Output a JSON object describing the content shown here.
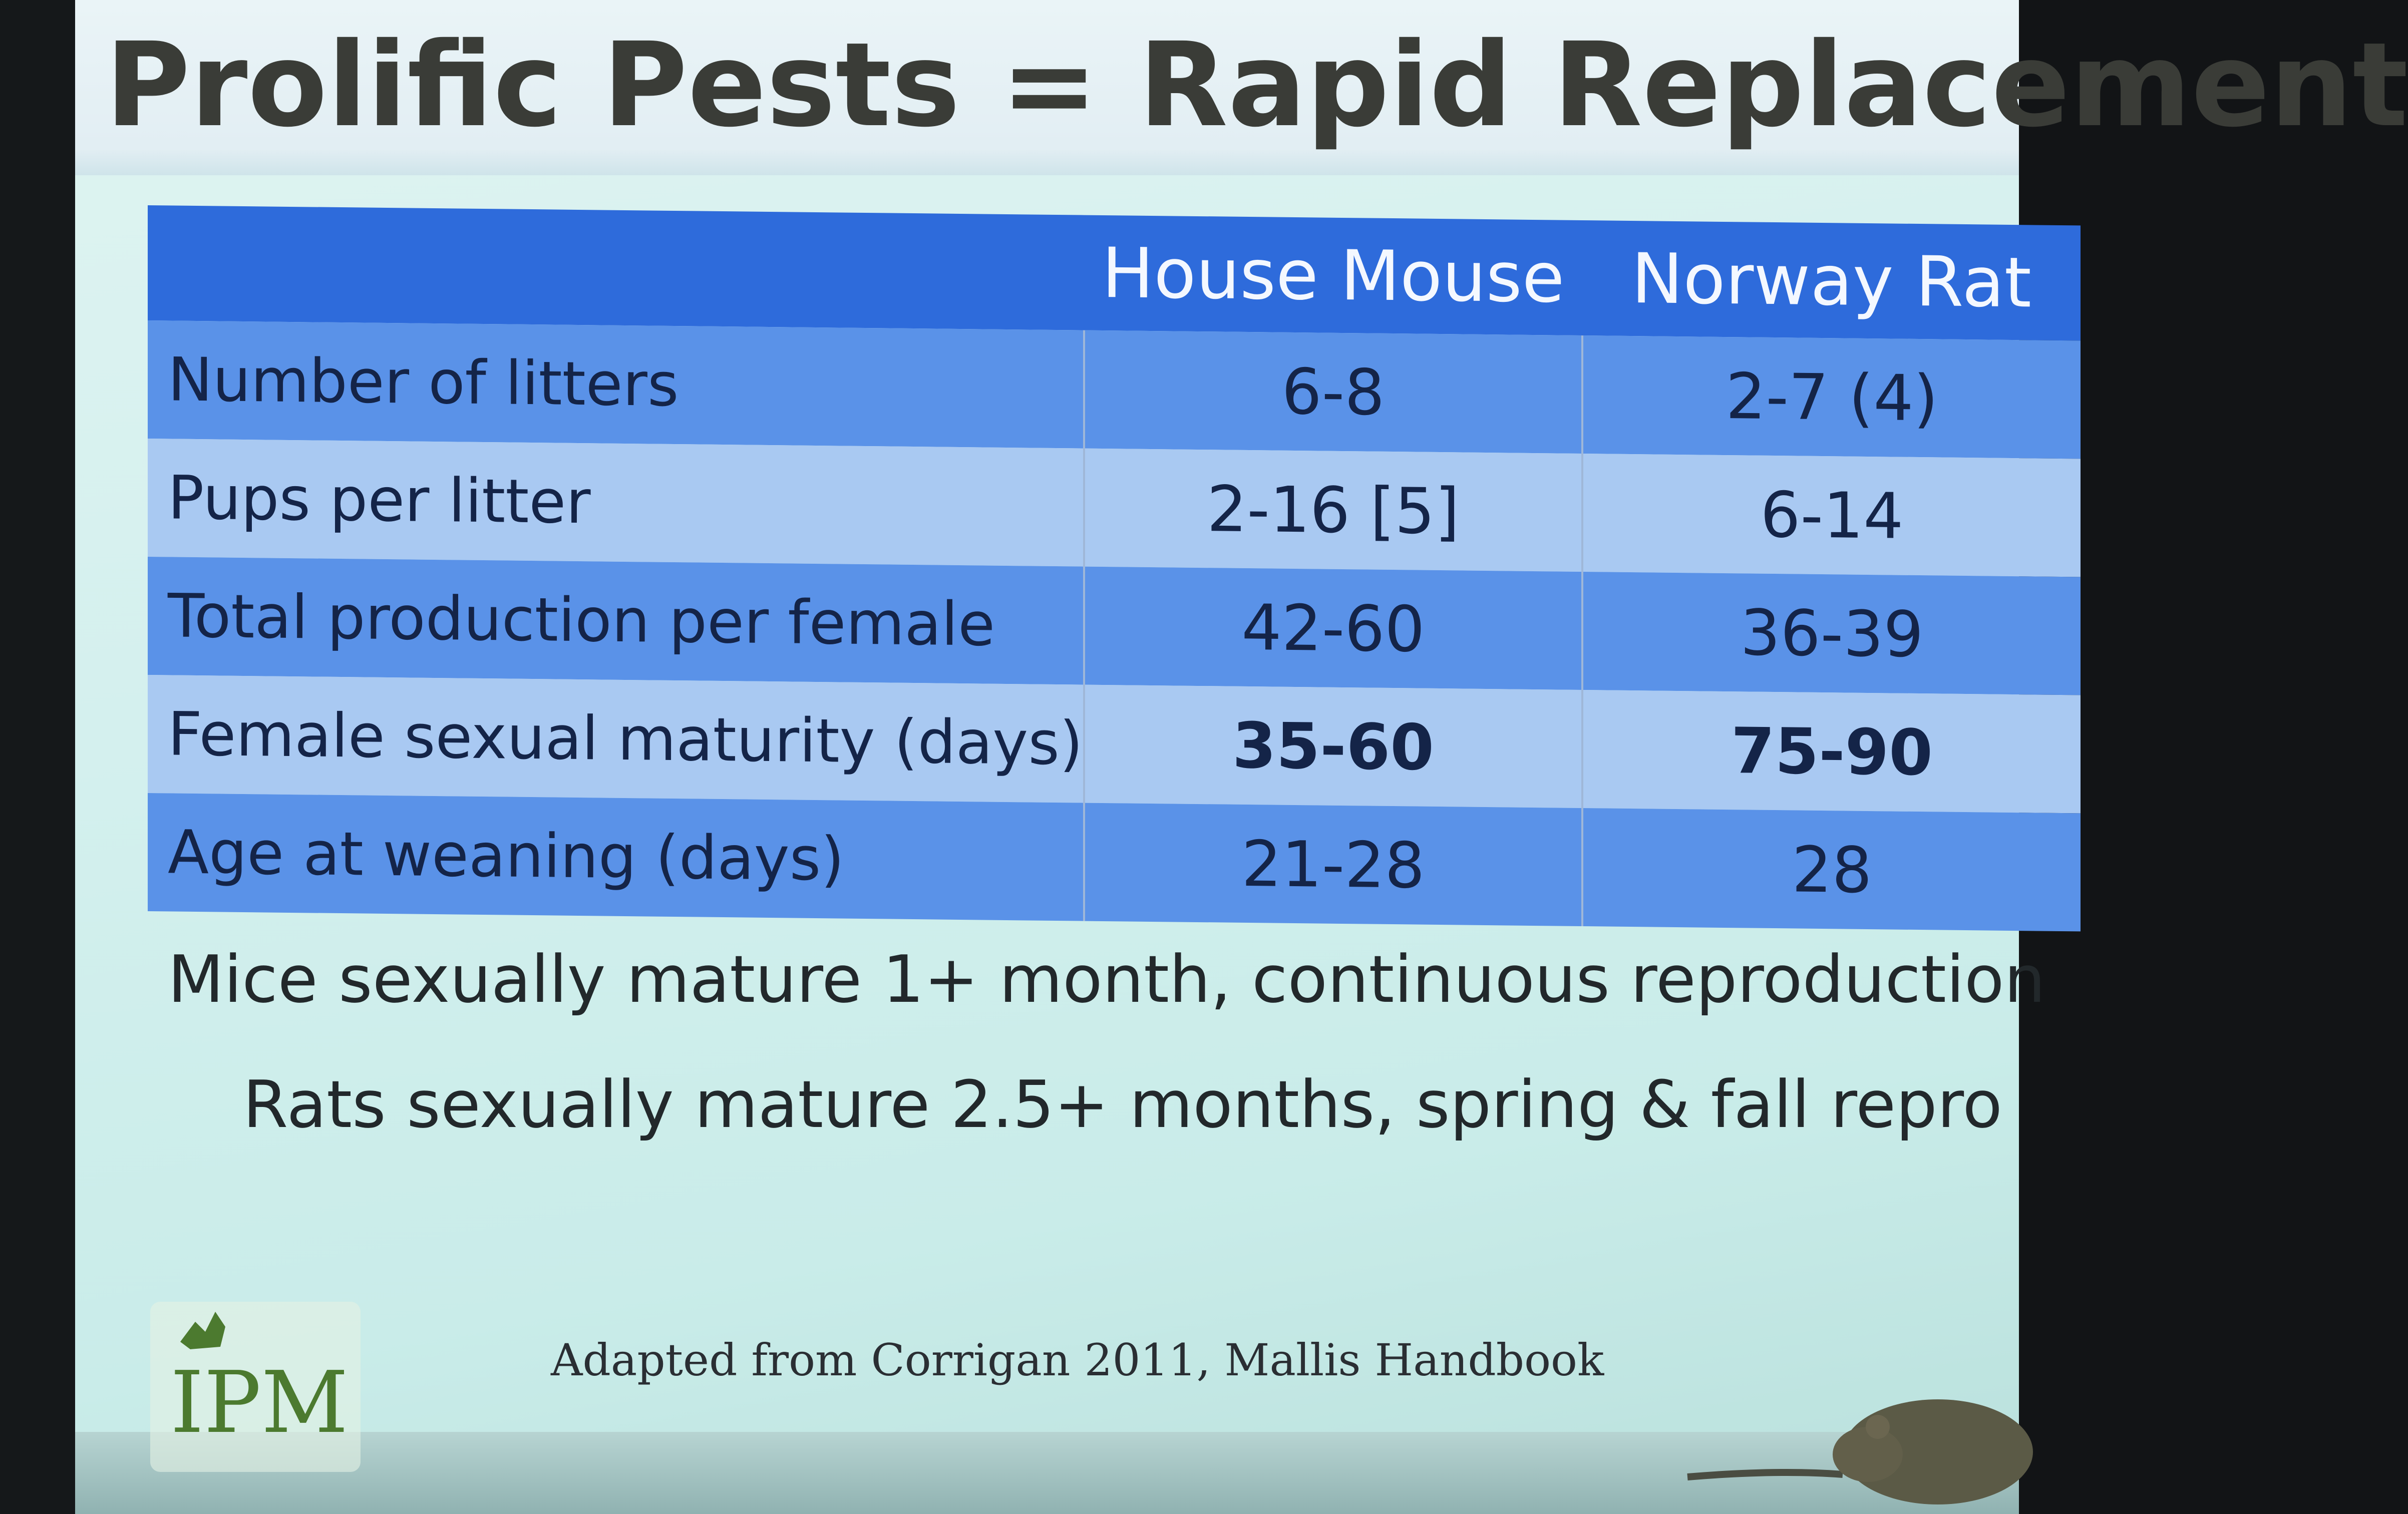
{
  "slide": {
    "title": "Prolific Pests = Rapid Replacement",
    "table": {
      "headers": [
        "",
        "House Mouse",
        "Norway Rat"
      ],
      "rows": [
        {
          "label": "Number of litters",
          "house_mouse": "6-8",
          "norway_rat": "2-7 (4)"
        },
        {
          "label": "Pups per litter",
          "house_mouse": "2-16 [5]",
          "norway_rat": "6-14"
        },
        {
          "label": "Total production per female",
          "house_mouse": "42-60",
          "norway_rat": "36-39"
        },
        {
          "label": "Female sexual maturity (days)",
          "house_mouse": "35-60",
          "norway_rat": "75-90"
        },
        {
          "label": "Age at weaning (days)",
          "house_mouse": "21-28",
          "norway_rat": "28"
        }
      ]
    },
    "notes": [
      "Mice sexually mature 1+ month, continuous reproduction",
      "Rats sexually mature 2.5+ months, spring & fall repro"
    ],
    "credit": "Adapted from Corrigan 2011, Mallis Handbook",
    "logo_text": "IPM",
    "colors": {
      "header_blue": "#2e6bdb",
      "row_dark": "#5a92e8",
      "row_light": "#a9c9f2",
      "logo_green": "#4c7a2f",
      "title_text": "#3a3c37"
    }
  }
}
